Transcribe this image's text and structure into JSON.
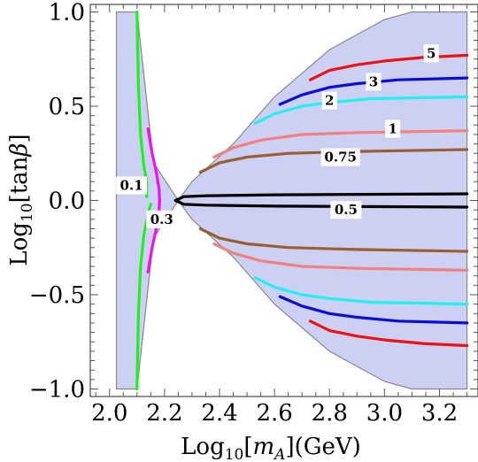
{
  "chart_data": {
    "type": "line",
    "xlabel": "Log10[mA](GeV)",
    "xlabel_parts": {
      "base": "Log",
      "sub": "10",
      "open": "[",
      "var": "m",
      "var_sub": "A",
      "close": "](GeV)"
    },
    "ylabel": "Log10[tanβ]",
    "ylabel_parts": {
      "base": "Log",
      "sub": "10",
      "inner": "[tan",
      "greek": "β",
      "close": "]"
    },
    "xlim": [
      1.93,
      3.34
    ],
    "ylim": [
      -1.04,
      1.04
    ],
    "x_ticks": [
      {
        "value": 2.0,
        "label": "2.0"
      },
      {
        "value": 2.2,
        "label": "2.2"
      },
      {
        "value": 2.4,
        "label": "2.4"
      },
      {
        "value": 2.6,
        "label": "2.6"
      },
      {
        "value": 2.8,
        "label": "2.8"
      },
      {
        "value": 3.0,
        "label": "3.0"
      },
      {
        "value": 3.2,
        "label": "3.2"
      }
    ],
    "y_ticks": [
      {
        "value": 1.0,
        "label": "1.0"
      },
      {
        "value": 0.5,
        "label": "0.5"
      },
      {
        "value": 0.0,
        "label": "0.0"
      },
      {
        "value": -0.5,
        "label": "−0.5"
      },
      {
        "value": -1.0,
        "label": "−1.0"
      }
    ],
    "grid": false,
    "region": {
      "fill": "#ccd0f2",
      "stroke": "#888888",
      "points": [
        [
          2.025,
          1.0
        ],
        [
          2.1,
          1.0
        ],
        [
          2.16,
          0.2
        ],
        [
          2.25,
          0.0
        ],
        [
          2.3,
          0.1
        ],
        [
          2.45,
          0.3
        ],
        [
          2.6,
          0.55
        ],
        [
          2.8,
          0.8
        ],
        [
          3.0,
          0.96
        ],
        [
          3.1,
          1.0
        ],
        [
          3.3,
          1.0
        ],
        [
          3.3,
          -1.0
        ],
        [
          3.1,
          -1.0
        ],
        [
          3.0,
          -0.96
        ],
        [
          2.8,
          -0.8
        ],
        [
          2.6,
          -0.55
        ],
        [
          2.45,
          -0.3
        ],
        [
          2.3,
          -0.1
        ],
        [
          2.25,
          0.0
        ],
        [
          2.16,
          -0.2
        ],
        [
          2.1,
          -1.0
        ],
        [
          2.025,
          -1.0
        ]
      ]
    },
    "series": [
      {
        "label": "5",
        "color": "#ee1111",
        "label_at": [
          3.17,
          0.78
        ],
        "paths": [
          [
            [
              2.73,
              0.64
            ],
            [
              2.8,
              0.69
            ],
            [
              2.9,
              0.72
            ],
            [
              3.0,
              0.74
            ],
            [
              3.15,
              0.76
            ],
            [
              3.3,
              0.77
            ]
          ],
          [
            [
              2.73,
              -0.64
            ],
            [
              2.8,
              -0.69
            ],
            [
              2.9,
              -0.72
            ],
            [
              3.0,
              -0.74
            ],
            [
              3.15,
              -0.76
            ],
            [
              3.3,
              -0.77
            ]
          ]
        ]
      },
      {
        "label": "3",
        "color": "#0b0bdd",
        "label_at": [
          2.96,
          0.63
        ],
        "paths": [
          [
            [
              2.62,
              0.51
            ],
            [
              2.7,
              0.56
            ],
            [
              2.8,
              0.6
            ],
            [
              2.9,
              0.62
            ],
            [
              3.05,
              0.64
            ],
            [
              3.3,
              0.65
            ]
          ],
          [
            [
              2.62,
              -0.51
            ],
            [
              2.7,
              -0.56
            ],
            [
              2.8,
              -0.6
            ],
            [
              2.9,
              -0.62
            ],
            [
              3.05,
              -0.64
            ],
            [
              3.3,
              -0.65
            ]
          ]
        ]
      },
      {
        "label": "2",
        "color": "#22f0f0",
        "label_at": [
          2.8,
          0.53
        ],
        "paths": [
          [
            [
              2.53,
              0.41
            ],
            [
              2.6,
              0.46
            ],
            [
              2.7,
              0.5
            ],
            [
              2.8,
              0.52
            ],
            [
              2.95,
              0.54
            ],
            [
              3.3,
              0.55
            ]
          ],
          [
            [
              2.53,
              -0.41
            ],
            [
              2.6,
              -0.46
            ],
            [
              2.7,
              -0.5
            ],
            [
              2.8,
              -0.52
            ],
            [
              2.95,
              -0.54
            ],
            [
              3.3,
              -0.55
            ]
          ]
        ]
      },
      {
        "label": "1",
        "color": "#f28080",
        "label_at": [
          3.03,
          0.38
        ],
        "paths": [
          [
            [
              2.38,
              0.23
            ],
            [
              2.45,
              0.28
            ],
            [
              2.55,
              0.32
            ],
            [
              2.7,
              0.35
            ],
            [
              2.9,
              0.36
            ],
            [
              3.3,
              0.37
            ]
          ],
          [
            [
              2.38,
              -0.23
            ],
            [
              2.45,
              -0.28
            ],
            [
              2.55,
              -0.32
            ],
            [
              2.7,
              -0.35
            ],
            [
              2.9,
              -0.36
            ],
            [
              3.3,
              -0.37
            ]
          ]
        ]
      },
      {
        "label": "0.75",
        "color": "#9b5e33",
        "label_at": [
          2.84,
          0.23
        ],
        "paths": [
          [
            [
              2.33,
              0.15
            ],
            [
              2.4,
              0.2
            ],
            [
              2.5,
              0.23
            ],
            [
              2.65,
              0.25
            ],
            [
              2.9,
              0.26
            ],
            [
              3.3,
              0.27
            ]
          ],
          [
            [
              2.33,
              -0.15
            ],
            [
              2.4,
              -0.2
            ],
            [
              2.5,
              -0.23
            ],
            [
              2.65,
              -0.25
            ],
            [
              2.9,
              -0.26
            ],
            [
              3.3,
              -0.27
            ]
          ]
        ]
      },
      {
        "label": "0.5",
        "color": "#000000",
        "label_at": [
          2.86,
          -0.05
        ],
        "paths": [
          [
            [
              2.24,
              0.0
            ],
            [
              2.27,
              0.02
            ],
            [
              2.35,
              0.025
            ],
            [
              2.6,
              0.03
            ],
            [
              3.3,
              0.035
            ]
          ],
          [
            [
              2.24,
              0.0
            ],
            [
              2.27,
              -0.02
            ],
            [
              2.35,
              -0.025
            ],
            [
              2.6,
              -0.03
            ],
            [
              3.3,
              -0.035
            ]
          ]
        ]
      },
      {
        "label": "0.1",
        "color": "#22ee22",
        "label_at": [
          2.08,
          0.08
        ],
        "paths": [
          [
            [
              2.1,
              1.0
            ],
            [
              2.105,
              0.6
            ],
            [
              2.113,
              0.35
            ],
            [
              2.125,
              0.18
            ],
            [
              2.135,
              0.1
            ],
            [
              2.135,
              0.02
            ]
          ],
          [
            [
              2.1,
              -1.0
            ],
            [
              2.105,
              -0.6
            ],
            [
              2.113,
              -0.35
            ],
            [
              2.125,
              -0.18
            ],
            [
              2.14,
              -0.07
            ],
            [
              2.15,
              -0.02
            ]
          ]
        ]
      },
      {
        "label": "0.3",
        "color": "#ee11ee",
        "label_at": [
          2.19,
          -0.1
        ],
        "paths": [
          [
            [
              2.14,
              0.38
            ],
            [
              2.155,
              0.25
            ],
            [
              2.17,
              0.15
            ],
            [
              2.18,
              0.06
            ],
            [
              2.182,
              0.0
            ]
          ],
          [
            [
              2.14,
              -0.38
            ],
            [
              2.155,
              -0.25
            ],
            [
              2.17,
              -0.15
            ],
            [
              2.18,
              -0.06
            ],
            [
              2.182,
              0.0
            ]
          ]
        ]
      }
    ]
  }
}
